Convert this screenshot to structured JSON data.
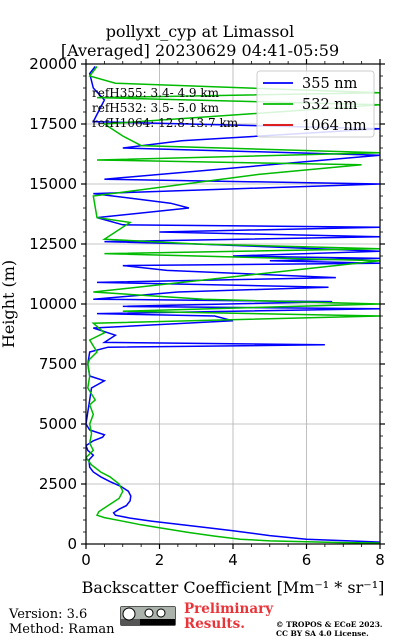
{
  "chart_data": {
    "type": "line",
    "title": "pollyxt_cyp at Limassol",
    "subtitle": "[Averaged] 20230629 04:41-05:59",
    "xlabel": "Backscatter Coefficient [Mm⁻¹ * sr⁻¹]",
    "ylabel": "Height (m)",
    "xlim": [
      0,
      8
    ],
    "ylim": [
      0,
      20000
    ],
    "xticks": [
      0,
      2,
      4,
      6,
      8
    ],
    "yticks": [
      0,
      2500,
      5000,
      7500,
      10000,
      12500,
      15000,
      17500,
      20000
    ],
    "grid": true,
    "legend_position": "top-right",
    "annotations": [
      "refH355:  3.4- 4.9 km",
      "refH532:  3.5- 5.0 km",
      "refH1064: 12.8-13.7 km"
    ],
    "series": [
      {
        "name": "355 nm",
        "color": "#0000ff",
        "points": [
          [
            8.0,
            80
          ],
          [
            7.5,
            110
          ],
          [
            6.8,
            150
          ],
          [
            6.0,
            200
          ],
          [
            5.0,
            350
          ],
          [
            4.0,
            550
          ],
          [
            3.2,
            700
          ],
          [
            2.5,
            820
          ],
          [
            1.8,
            950
          ],
          [
            1.2,
            1080
          ],
          [
            0.8,
            1200
          ],
          [
            0.75,
            1300
          ],
          [
            0.9,
            1450
          ],
          [
            1.1,
            1600
          ],
          [
            1.2,
            1800
          ],
          [
            1.22,
            2000
          ],
          [
            1.15,
            2200
          ],
          [
            0.95,
            2400
          ],
          [
            0.65,
            2600
          ],
          [
            0.4,
            2800
          ],
          [
            0.2,
            3000
          ],
          [
            0.1,
            3200
          ],
          [
            0.08,
            3500
          ],
          [
            0.2,
            3700
          ],
          [
            0.05,
            3900
          ],
          [
            0.0,
            4100
          ],
          [
            0.2,
            4300
          ],
          [
            0.45,
            4450
          ],
          [
            0.5,
            4550
          ],
          [
            0.3,
            4650
          ],
          [
            0.1,
            4750
          ],
          [
            0.0,
            5000
          ],
          [
            0.05,
            5500
          ],
          [
            0.1,
            6000
          ],
          [
            0.15,
            6500
          ],
          [
            0.5,
            6800
          ],
          [
            0.1,
            7000
          ],
          [
            0.05,
            7500
          ],
          [
            0.1,
            8000
          ],
          [
            0.6,
            8200
          ],
          [
            6.5,
            8300
          ],
          [
            0.5,
            8400
          ],
          [
            0.8,
            8700
          ],
          [
            0.2,
            9000
          ],
          [
            4.0,
            9300
          ],
          [
            3.5,
            9500
          ],
          [
            0.3,
            9600
          ],
          [
            8.0,
            9800
          ],
          [
            1.0,
            9900
          ],
          [
            6.7,
            10100
          ],
          [
            0.2,
            10200
          ],
          [
            2.5,
            10500
          ],
          [
            6.6,
            10700
          ],
          [
            0.3,
            10900
          ],
          [
            6.8,
            11100
          ],
          [
            2.2,
            11400
          ],
          [
            1.0,
            11600
          ],
          [
            8.0,
            11700
          ],
          [
            5.0,
            11800
          ],
          [
            8.0,
            11900
          ],
          [
            4.0,
            12000
          ],
          [
            8.0,
            12200
          ],
          [
            3.0,
            12500
          ],
          [
            0.5,
            12600
          ],
          [
            8.0,
            12800
          ],
          [
            2.0,
            13000
          ],
          [
            8.0,
            13200
          ],
          [
            1.0,
            13300
          ],
          [
            0.3,
            13600
          ],
          [
            2.8,
            14000
          ],
          [
            2.3,
            14200
          ],
          [
            0.2,
            14600
          ],
          [
            8.0,
            15000
          ],
          [
            0.5,
            15200
          ],
          [
            8.0,
            16200
          ],
          [
            1.0,
            16500
          ],
          [
            2.6,
            16800
          ],
          [
            8.0,
            17300
          ],
          [
            0.2,
            17600
          ],
          [
            0.3,
            17900
          ],
          [
            0.5,
            18500
          ],
          [
            0.2,
            19000
          ],
          [
            0.1,
            19600
          ],
          [
            0.25,
            19900
          ]
        ]
      },
      {
        "name": "532 nm",
        "color": "#00bb00",
        "points": [
          [
            8.0,
            40
          ],
          [
            7.0,
            60
          ],
          [
            6.0,
            90
          ],
          [
            5.0,
            130
          ],
          [
            4.2,
            200
          ],
          [
            3.5,
            330
          ],
          [
            2.8,
            480
          ],
          [
            2.1,
            650
          ],
          [
            1.5,
            800
          ],
          [
            1.0,
            950
          ],
          [
            0.5,
            1100
          ],
          [
            0.3,
            1200
          ],
          [
            0.35,
            1350
          ],
          [
            0.6,
            1600
          ],
          [
            0.9,
            1900
          ],
          [
            1.0,
            2200
          ],
          [
            0.9,
            2500
          ],
          [
            0.65,
            2800
          ],
          [
            0.4,
            3000
          ],
          [
            0.15,
            3300
          ],
          [
            0.0,
            3600
          ],
          [
            0.2,
            3900
          ],
          [
            0.1,
            4200
          ],
          [
            0.15,
            4600
          ],
          [
            0.1,
            5000
          ],
          [
            0.2,
            5400
          ],
          [
            0.1,
            5800
          ],
          [
            0.25,
            6000
          ],
          [
            0.05,
            6500
          ],
          [
            0.1,
            7000
          ],
          [
            0.05,
            7500
          ],
          [
            0.1,
            7700
          ],
          [
            0.3,
            8000
          ],
          [
            0.1,
            8500
          ],
          [
            0.5,
            8800
          ],
          [
            0.2,
            9200
          ],
          [
            8.0,
            9500
          ],
          [
            1.0,
            9700
          ],
          [
            8.0,
            10000
          ],
          [
            3.2,
            10200
          ],
          [
            0.2,
            10500
          ],
          [
            8.0,
            11800
          ],
          [
            0.5,
            12100
          ],
          [
            8.0,
            12300
          ],
          [
            3.0,
            12500
          ],
          [
            0.5,
            12700
          ],
          [
            1.2,
            13400
          ],
          [
            0.3,
            13600
          ],
          [
            0.2,
            14500
          ],
          [
            4.7,
            15400
          ],
          [
            7.5,
            15800
          ],
          [
            0.3,
            16000
          ],
          [
            8.0,
            16300
          ],
          [
            1.5,
            16600
          ],
          [
            1.0,
            17000
          ],
          [
            0.5,
            17500
          ],
          [
            8.0,
            18300
          ],
          [
            0.3,
            18600
          ],
          [
            8.0,
            18800
          ],
          [
            0.8,
            19200
          ],
          [
            0.1,
            19500
          ],
          [
            0.3,
            19900
          ]
        ]
      },
      {
        "name": "1064 nm",
        "color": "#dd0000",
        "points": []
      }
    ]
  },
  "footer": {
    "version": "Version: 3.6",
    "method": "Method: Raman",
    "preliminary_1": "Preliminary",
    "preliminary_2": "Results.",
    "copyright": "© TROPOS & ECoE 2023.",
    "license": "CC BY SA 4.0 License."
  }
}
